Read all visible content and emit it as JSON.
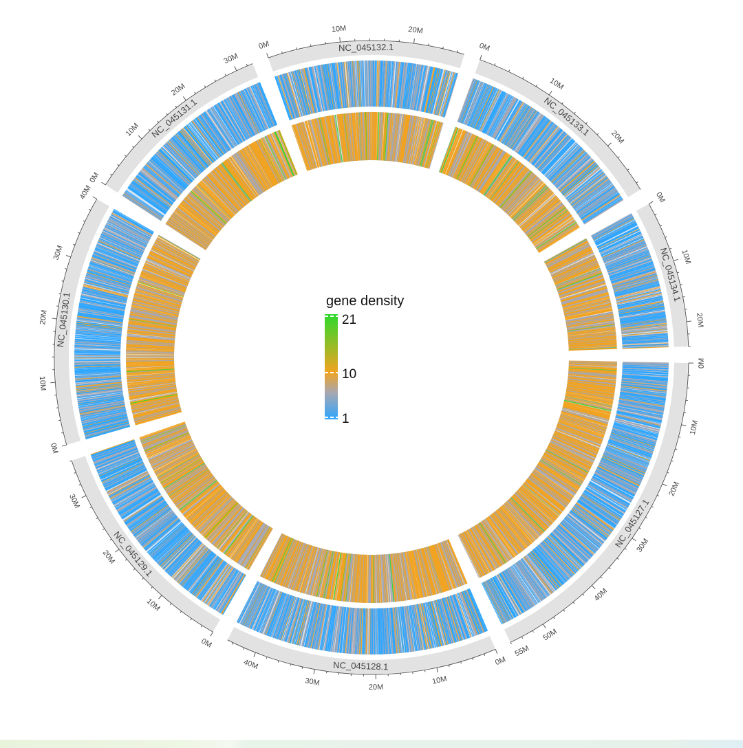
{
  "legend": {
    "title": "gene density",
    "min": 1,
    "mid": 10,
    "max": 21,
    "ticks": [
      "21",
      "10",
      "1"
    ],
    "colors": {
      "low": "#2ea6ff",
      "mid_low": "#a5a7b3",
      "mid": "#f1a320",
      "max": "#2cd92c"
    }
  },
  "chromosomes": [
    {
      "name": "NC_045127.1",
      "length_mb": 56,
      "ticks": [
        "0M",
        "10M",
        "20M",
        "30M",
        "40M",
        "50M",
        "55M"
      ]
    },
    {
      "name": "NC_045128.1",
      "length_mb": 45,
      "ticks": [
        "0M",
        "10M",
        "20M",
        "30M",
        "40M"
      ]
    },
    {
      "name": "NC_045129.1",
      "length_mb": 36,
      "ticks": [
        "0M",
        "10M",
        "20M",
        "30M"
      ]
    },
    {
      "name": "NC_045130.1",
      "length_mb": 40,
      "ticks": [
        "0M",
        "10M",
        "20M",
        "30M",
        "40M"
      ]
    },
    {
      "name": "NC_045131.1",
      "length_mb": 33,
      "ticks": [
        "0M",
        "10M",
        "20M",
        "30M"
      ]
    },
    {
      "name": "NC_045132.1",
      "length_mb": 27,
      "ticks": [
        "0M",
        "10M",
        "20M"
      ]
    },
    {
      "name": "NC_045133.1",
      "length_mb": 27,
      "ticks": [
        "0M",
        "10M",
        "20M"
      ]
    },
    {
      "name": "NC_045134.1",
      "length_mb": 24,
      "ticks": [
        "0M",
        "10M",
        "20M"
      ]
    }
  ],
  "colors": {
    "ideogram": "#e2e2e2",
    "axis": "#555555"
  }
}
